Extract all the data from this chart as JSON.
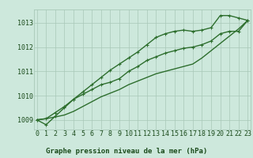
{
  "xlabel": "Graphe pression niveau de la mer (hPa)",
  "background_color": "#cde8dc",
  "grid_color": "#a8c8b8",
  "line_color": "#2d6e2d",
  "hours": [
    0,
    1,
    2,
    3,
    4,
    5,
    6,
    7,
    8,
    9,
    10,
    11,
    12,
    13,
    14,
    15,
    16,
    17,
    18,
    19,
    20,
    21,
    22,
    23
  ],
  "series1": [
    1009.0,
    1008.8,
    1009.15,
    1009.5,
    1009.85,
    1010.15,
    1010.45,
    1010.75,
    1011.05,
    1011.3,
    1011.55,
    1011.8,
    1012.1,
    1012.4,
    1012.55,
    1012.65,
    1012.7,
    1012.65,
    1012.7,
    1012.8,
    1013.3,
    1013.3,
    1013.2,
    1013.1
  ],
  "series2": [
    1009.0,
    1009.05,
    1009.3,
    1009.55,
    1009.85,
    1010.05,
    1010.25,
    1010.45,
    1010.55,
    1010.7,
    1011.0,
    1011.2,
    1011.45,
    1011.6,
    1011.75,
    1011.85,
    1011.95,
    1012.0,
    1012.1,
    1012.25,
    1012.55,
    1012.65,
    1012.65,
    1013.1
  ],
  "series3": [
    1009.0,
    1009.05,
    1009.12,
    1009.2,
    1009.35,
    1009.55,
    1009.75,
    1009.95,
    1010.1,
    1010.25,
    1010.45,
    1010.6,
    1010.75,
    1010.9,
    1011.0,
    1011.1,
    1011.2,
    1011.3,
    1011.55,
    1011.85,
    1012.15,
    1012.45,
    1012.75,
    1013.1
  ],
  "ylim": [
    1008.6,
    1013.55
  ],
  "yticks": [
    1009,
    1010,
    1011,
    1012,
    1013
  ],
  "xticks": [
    0,
    1,
    2,
    3,
    4,
    5,
    6,
    7,
    8,
    9,
    10,
    11,
    12,
    13,
    14,
    15,
    16,
    17,
    18,
    19,
    20,
    21,
    22,
    23
  ],
  "marker": "+",
  "marker_size": 3.5,
  "line_width": 1.0,
  "xlabel_fontsize": 6.5,
  "tick_fontsize": 6.0,
  "tick_color": "#1a4a1a"
}
